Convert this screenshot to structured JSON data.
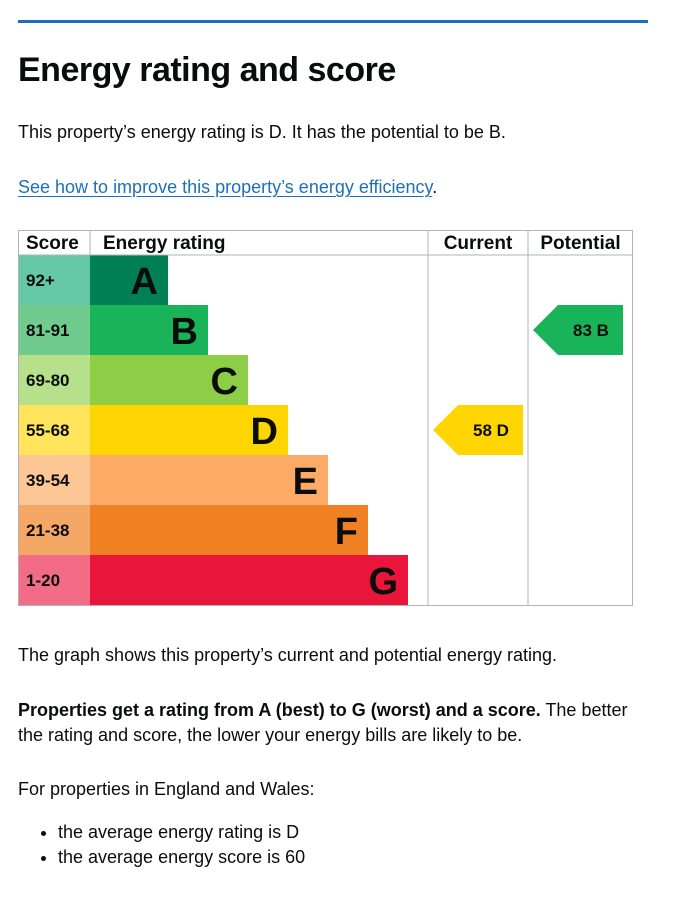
{
  "heading": "Energy rating and score",
  "intro": "This property’s energy rating is D. It has the potential to be B.",
  "improve_link": "See how to improve this property’s energy efficiency",
  "improve_suffix": ".",
  "chart_data": {
    "type": "bar",
    "columns": {
      "score": "Score",
      "rating": "Energy rating",
      "current": "Current",
      "potential": "Potential"
    },
    "bands": [
      {
        "letter": "A",
        "range": "92+",
        "color": "#008054",
        "score_bg": "#64c7a5"
      },
      {
        "letter": "B",
        "range": "81-91",
        "color": "#19b459",
        "score_bg": "#6fcb8e"
      },
      {
        "letter": "C",
        "range": "69-80",
        "color": "#8dce46",
        "score_bg": "#b6e08a"
      },
      {
        "letter": "D",
        "range": "55-68",
        "color": "#ffd500",
        "score_bg": "#ffe45c"
      },
      {
        "letter": "E",
        "range": "39-54",
        "color": "#fcaa65",
        "score_bg": "#fdc795"
      },
      {
        "letter": "F",
        "range": "21-38",
        "color": "#ef8023",
        "score_bg": "#f5a866"
      },
      {
        "letter": "G",
        "range": "1-20",
        "color": "#e9153b",
        "score_bg": "#f26c86"
      }
    ],
    "current": {
      "score": 58,
      "letter": "D",
      "color": "#ffd500"
    },
    "potential": {
      "score": 83,
      "letter": "B",
      "color": "#19b459"
    }
  },
  "graph_note": "The graph shows this property’s current and potential energy rating.",
  "rating_info_bold": "Properties get a rating from A (best) to G (worst) and a score.",
  "rating_info_rest": " The better the rating and score, the lower your energy bills are likely to be.",
  "england_wales": "For properties in England and Wales:",
  "bullets": [
    "the average energy rating is D",
    "the average energy score is 60"
  ]
}
